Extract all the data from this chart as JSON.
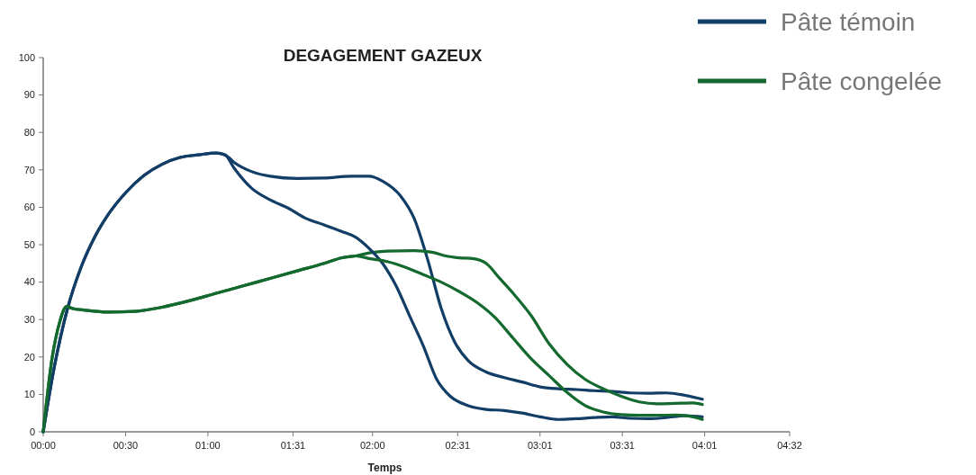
{
  "chart_data": {
    "type": "line",
    "title": "DEGAGEMENT GAZEUX",
    "xlabel": "Temps",
    "legend": "top right",
    "grid": false,
    "xlim": [
      0,
      4.533
    ],
    "xticks": [
      {
        "value": 0,
        "label": "00:00"
      },
      {
        "value": 0.5,
        "label": "00:30"
      },
      {
        "value": 1,
        "label": "01:00"
      },
      {
        "value": 1.517,
        "label": "01:31"
      },
      {
        "value": 2,
        "label": "02:00"
      },
      {
        "value": 2.517,
        "label": "02:31"
      },
      {
        "value": 3.017,
        "label": "03:01"
      },
      {
        "value": 3.517,
        "label": "03:31"
      },
      {
        "value": 4.017,
        "label": "04:01"
      },
      {
        "value": 4.533,
        "label": "04:32"
      }
    ],
    "ylim": [
      0,
      100
    ],
    "yticks": [
      0,
      10,
      20,
      30,
      40,
      50,
      60,
      70,
      80,
      90,
      100
    ],
    "series": [
      {
        "name": "Pâte témoin",
        "color": "#123d66",
        "x": [
          0,
          0.066,
          0.148,
          0.23,
          0.312,
          0.394,
          0.503,
          0.612,
          0.722,
          0.831,
          0.941,
          1.05,
          1.105,
          1.159,
          1.268,
          1.378,
          1.542,
          1.706,
          1.87,
          1.979,
          2.061,
          2.171,
          2.253,
          2.335,
          2.417,
          2.499,
          2.581,
          2.69,
          2.8,
          2.909,
          3.018,
          3.128,
          3.237,
          3.346,
          3.456,
          3.565,
          3.675,
          3.784,
          3.893,
          4.003
        ],
        "values": [
          0,
          17,
          33,
          44,
          52,
          58,
          64,
          68.5,
          71.5,
          73.3,
          74,
          74.5,
          74,
          72,
          69.5,
          68.3,
          67.7,
          67.8,
          68.3,
          68.3,
          67,
          63,
          57,
          46,
          33,
          24,
          19,
          16,
          14.5,
          13.3,
          12,
          11.5,
          11.3,
          11,
          10.8,
          10.4,
          10.3,
          10.4,
          9.8,
          8.7
        ]
      },
      {
        "name": "Pâte congelée",
        "color": "#13692e",
        "x": [
          0,
          0.055,
          0.098,
          0.142,
          0.175,
          0.257,
          0.394,
          0.558,
          0.722,
          0.886,
          1.05,
          1.214,
          1.378,
          1.542,
          1.706,
          1.815,
          1.897,
          1.979,
          2.089,
          2.253,
          2.362,
          2.444,
          2.526,
          2.608,
          2.69,
          2.772,
          2.854,
          2.964,
          3.073,
          3.182,
          3.292,
          3.401,
          3.51,
          3.62,
          3.729,
          3.839,
          3.948,
          4.003
        ],
        "values": [
          0,
          20,
          29,
          33.5,
          33,
          32.5,
          32,
          32.2,
          33.3,
          35,
          37,
          39,
          41,
          43,
          45,
          46.5,
          47,
          47.8,
          48.3,
          48.4,
          48,
          47,
          46.5,
          46.3,
          45,
          41,
          37,
          31,
          23.5,
          18,
          14,
          11.5,
          9.5,
          8,
          7.5,
          7.6,
          7.7,
          7.3
        ]
      },
      {
        "color": "#123d66",
        "x": [
          0,
          0.066,
          0.148,
          0.23,
          0.312,
          0.394,
          0.503,
          0.612,
          0.722,
          0.831,
          0.941,
          1.05,
          1.105,
          1.159,
          1.268,
          1.378,
          1.487,
          1.597,
          1.706,
          1.815,
          1.897,
          1.979,
          2.061,
          2.143,
          2.225,
          2.308,
          2.39,
          2.472,
          2.581,
          2.69,
          2.8,
          2.909,
          3.018,
          3.128,
          3.237,
          3.346,
          3.456,
          3.565,
          3.675,
          3.784,
          3.893,
          4.003
        ],
        "values": [
          0,
          17,
          33,
          44,
          52,
          58,
          64,
          68.5,
          71.5,
          73.3,
          74,
          74.5,
          74,
          70.5,
          65,
          62,
          59.8,
          57,
          55.3,
          53.5,
          52,
          49,
          45,
          39,
          31,
          23,
          14,
          9.5,
          7,
          6,
          5.7,
          5,
          4,
          3.3,
          3.5,
          3.8,
          4,
          3.6,
          3.5,
          3.8,
          4.3,
          4
        ]
      },
      {
        "color": "#13692e",
        "x": [
          0,
          0.055,
          0.098,
          0.142,
          0.175,
          0.257,
          0.394,
          0.558,
          0.722,
          0.886,
          1.05,
          1.214,
          1.378,
          1.542,
          1.706,
          1.815,
          1.897,
          1.979,
          2.089,
          2.198,
          2.308,
          2.417,
          2.526,
          2.636,
          2.745,
          2.854,
          2.964,
          3.073,
          3.182,
          3.292,
          3.401,
          3.51,
          3.62,
          3.729,
          3.839,
          3.948,
          4.003
        ],
        "values": [
          0,
          20,
          29,
          33.5,
          33,
          32.5,
          32,
          32.2,
          33.3,
          35,
          37,
          39,
          41,
          43,
          45,
          46.5,
          47,
          46.3,
          45.5,
          44,
          42,
          40,
          37.5,
          34.5,
          30.5,
          25,
          19.5,
          15,
          10.5,
          7,
          5.3,
          4.6,
          4.4,
          4.4,
          4.5,
          4,
          3.3
        ]
      }
    ]
  }
}
